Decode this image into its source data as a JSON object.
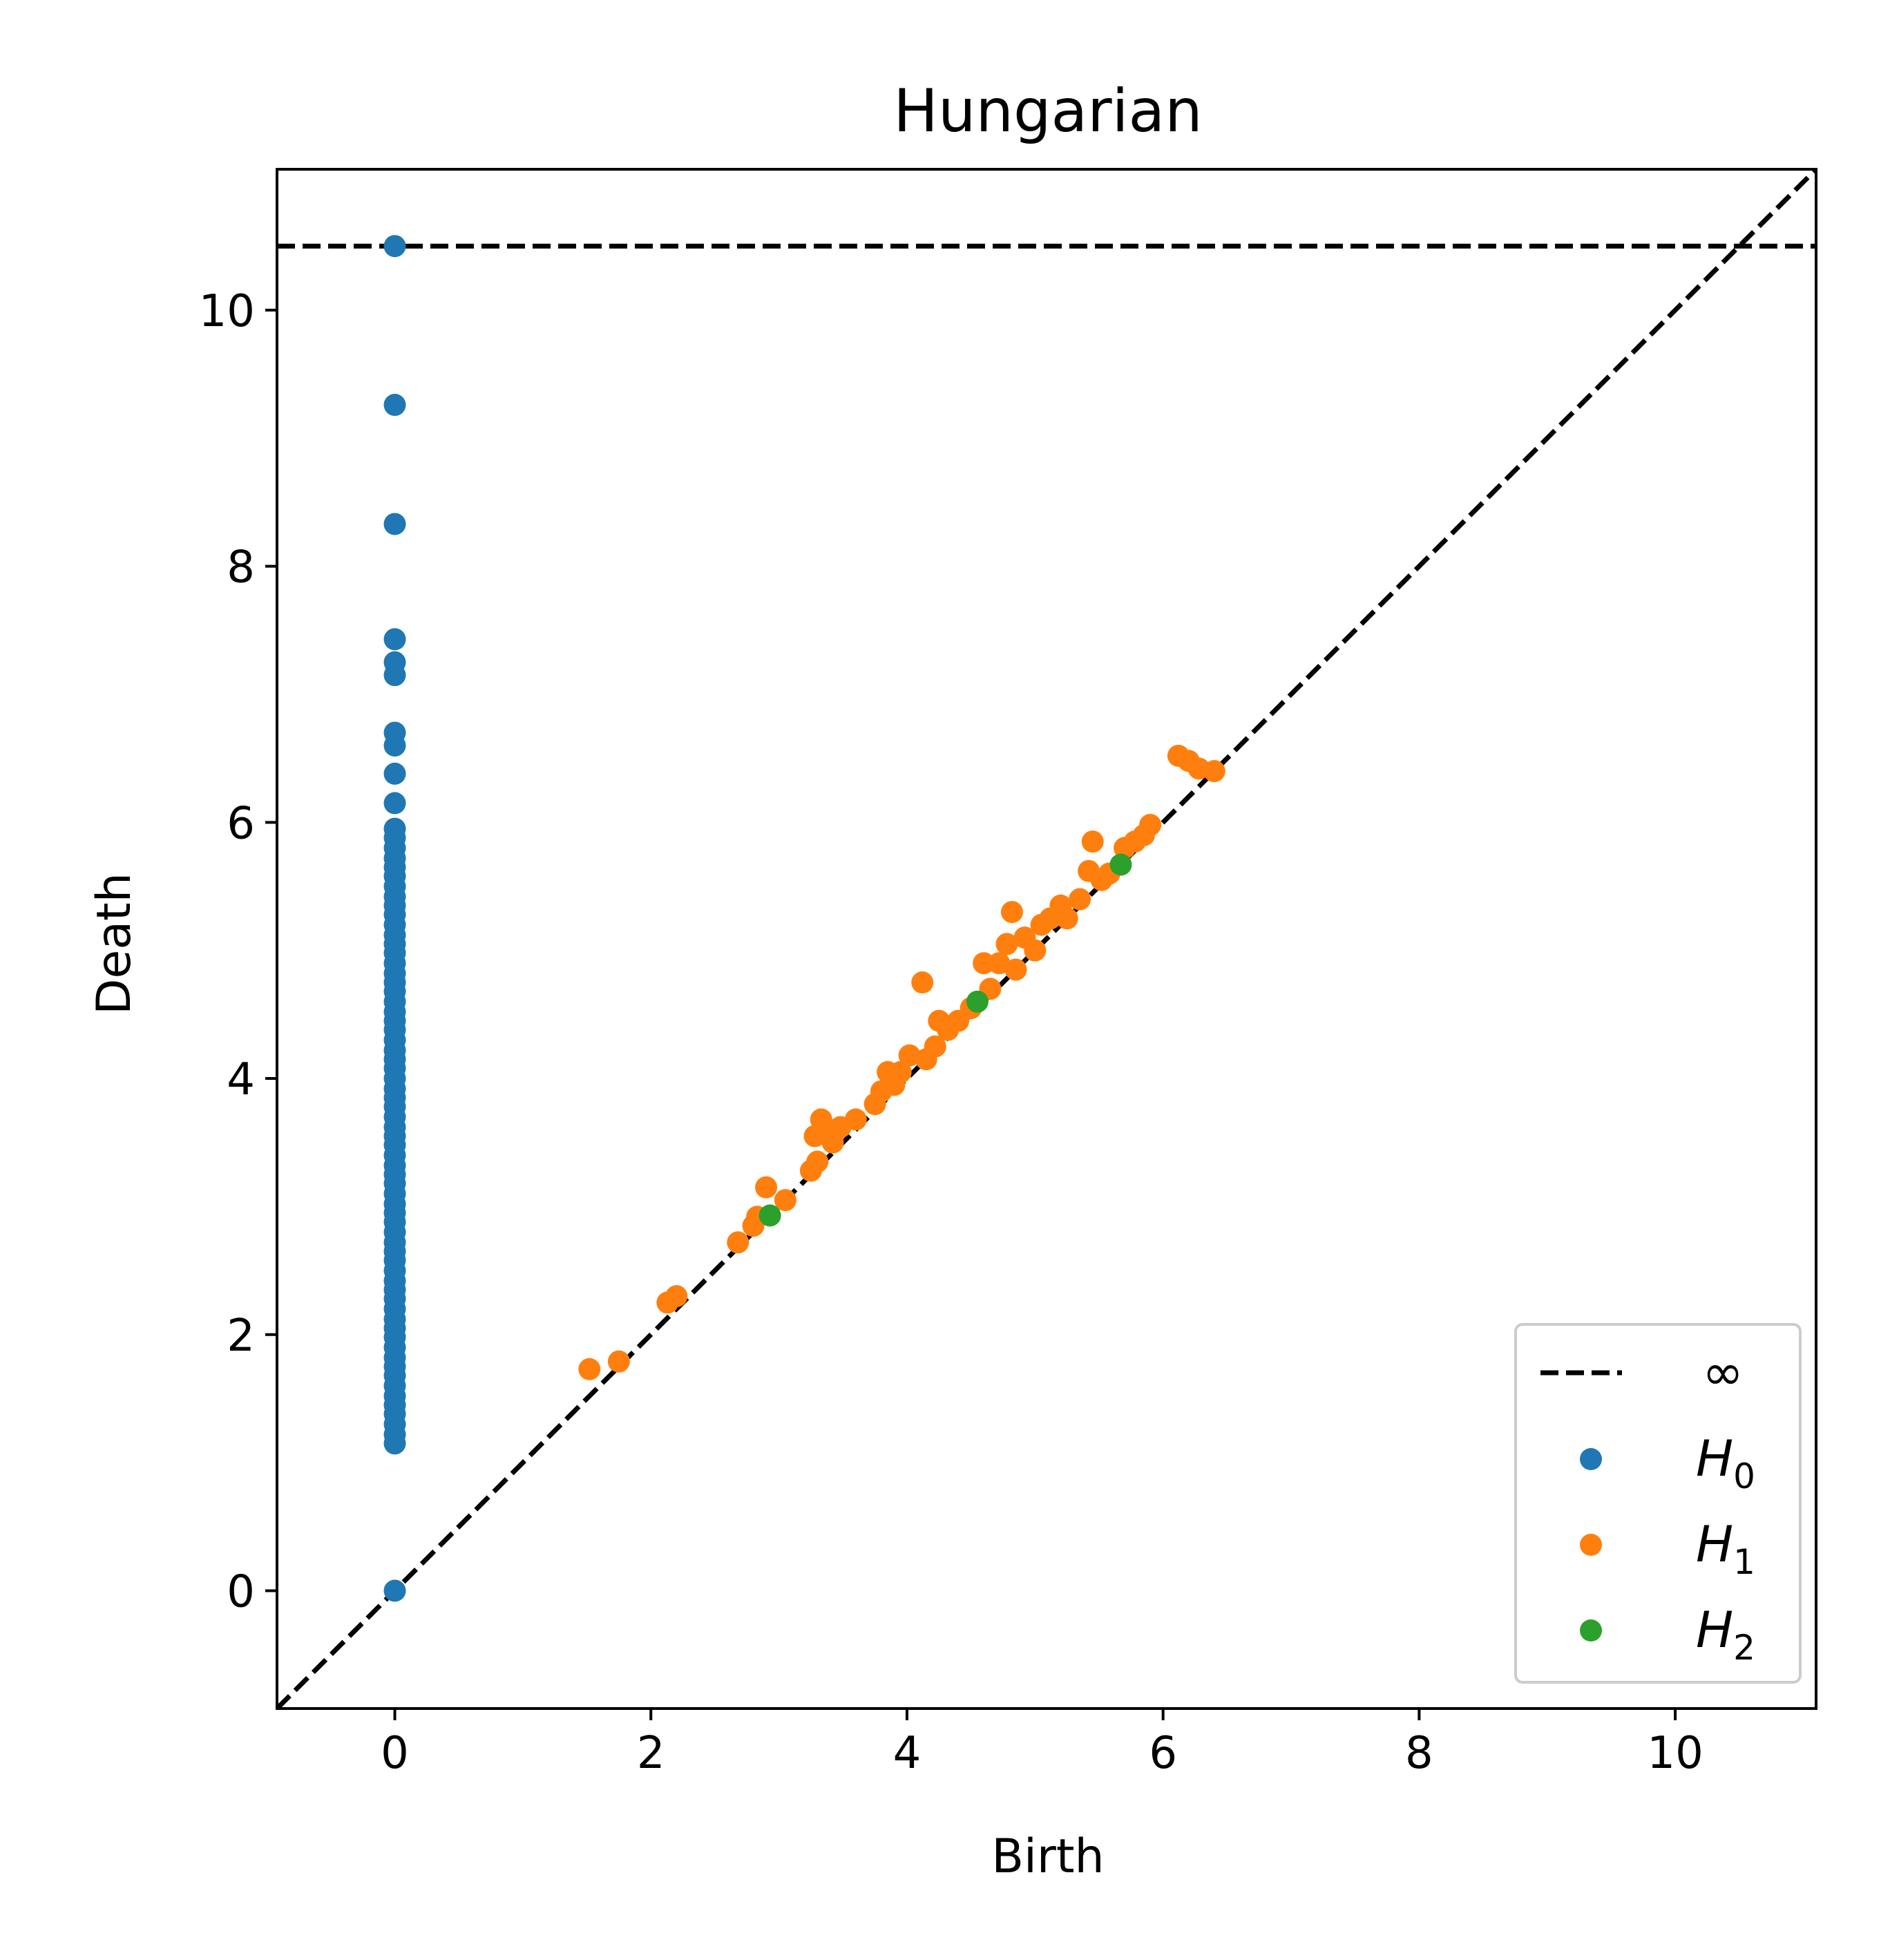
{
  "chart_data": {
    "type": "scatter",
    "title": "Hungarian",
    "xlabel": "Birth",
    "ylabel": "Death",
    "xlim": [
      -0.92,
      11.1
    ],
    "ylim": [
      -0.92,
      11.1
    ],
    "xticks": [
      0,
      2,
      4,
      6,
      8,
      10
    ],
    "yticks": [
      0,
      2,
      4,
      6,
      8,
      10
    ],
    "grid": false,
    "legend_position": "lower-right",
    "diagonal": {
      "style": "dashed",
      "color": "#000000"
    },
    "infinity_line": {
      "y": 10.5,
      "label": "∞",
      "style": "dashed",
      "color": "#000000"
    },
    "series": [
      {
        "name": "H",
        "subscript": "0",
        "color": "#1f77b4",
        "points": [
          [
            0,
            0
          ],
          [
            0,
            1.15
          ],
          [
            0,
            1.22
          ],
          [
            0,
            1.3
          ],
          [
            0,
            1.38
          ],
          [
            0,
            1.45
          ],
          [
            0,
            1.52
          ],
          [
            0,
            1.6
          ],
          [
            0,
            1.68
          ],
          [
            0,
            1.75
          ],
          [
            0,
            1.82
          ],
          [
            0,
            1.9
          ],
          [
            0,
            1.98
          ],
          [
            0,
            2.05
          ],
          [
            0,
            2.12
          ],
          [
            0,
            2.2
          ],
          [
            0,
            2.28
          ],
          [
            0,
            2.35
          ],
          [
            0,
            2.42
          ],
          [
            0,
            2.5
          ],
          [
            0,
            2.58
          ],
          [
            0,
            2.65
          ],
          [
            0,
            2.72
          ],
          [
            0,
            2.8
          ],
          [
            0,
            2.88
          ],
          [
            0,
            2.95
          ],
          [
            0,
            3.02
          ],
          [
            0,
            3.1
          ],
          [
            0,
            3.18
          ],
          [
            0,
            3.25
          ],
          [
            0,
            3.32
          ],
          [
            0,
            3.4
          ],
          [
            0,
            3.48
          ],
          [
            0,
            3.55
          ],
          [
            0,
            3.62
          ],
          [
            0,
            3.7
          ],
          [
            0,
            3.78
          ],
          [
            0,
            3.85
          ],
          [
            0,
            3.92
          ],
          [
            0,
            4.0
          ],
          [
            0,
            4.08
          ],
          [
            0,
            4.15
          ],
          [
            0,
            4.22
          ],
          [
            0,
            4.3
          ],
          [
            0,
            4.38
          ],
          [
            0,
            4.45
          ],
          [
            0,
            4.52
          ],
          [
            0,
            4.6
          ],
          [
            0,
            4.68
          ],
          [
            0,
            4.75
          ],
          [
            0,
            4.82
          ],
          [
            0,
            4.9
          ],
          [
            0,
            4.98
          ],
          [
            0,
            5.05
          ],
          [
            0,
            5.12
          ],
          [
            0,
            5.2
          ],
          [
            0,
            5.28
          ],
          [
            0,
            5.35
          ],
          [
            0,
            5.42
          ],
          [
            0,
            5.5
          ],
          [
            0,
            5.58
          ],
          [
            0,
            5.65
          ],
          [
            0,
            5.72
          ],
          [
            0,
            5.8
          ],
          [
            0,
            5.88
          ],
          [
            0,
            5.95
          ],
          [
            0,
            6.15
          ],
          [
            0,
            6.38
          ],
          [
            0,
            6.6
          ],
          [
            0,
            6.7
          ],
          [
            0,
            7.15
          ],
          [
            0,
            7.25
          ],
          [
            0,
            7.43
          ],
          [
            0,
            8.33
          ],
          [
            0,
            9.26
          ],
          [
            0,
            10.5
          ]
        ]
      },
      {
        "name": "H",
        "subscript": "1",
        "color": "#ff7f0e",
        "points": [
          [
            1.52,
            1.73
          ],
          [
            1.75,
            1.79
          ],
          [
            2.13,
            2.25
          ],
          [
            2.2,
            2.3
          ],
          [
            2.68,
            2.72
          ],
          [
            2.8,
            2.85
          ],
          [
            2.83,
            2.92
          ],
          [
            2.9,
            3.15
          ],
          [
            3.05,
            3.05
          ],
          [
            3.25,
            3.28
          ],
          [
            3.28,
            3.55
          ],
          [
            3.3,
            3.35
          ],
          [
            3.33,
            3.68
          ],
          [
            3.38,
            3.6
          ],
          [
            3.42,
            3.5
          ],
          [
            3.48,
            3.62
          ],
          [
            3.6,
            3.68
          ],
          [
            3.75,
            3.8
          ],
          [
            3.8,
            3.9
          ],
          [
            3.85,
            4.05
          ],
          [
            3.9,
            3.95
          ],
          [
            3.95,
            4.05
          ],
          [
            4.02,
            4.18
          ],
          [
            4.12,
            4.75
          ],
          [
            4.15,
            4.15
          ],
          [
            4.22,
            4.25
          ],
          [
            4.25,
            4.45
          ],
          [
            4.32,
            4.38
          ],
          [
            4.4,
            4.45
          ],
          [
            4.5,
            4.55
          ],
          [
            4.6,
            4.9
          ],
          [
            4.65,
            4.7
          ],
          [
            4.72,
            4.9
          ],
          [
            4.78,
            5.05
          ],
          [
            4.82,
            5.3
          ],
          [
            4.85,
            4.85
          ],
          [
            4.92,
            5.1
          ],
          [
            5.0,
            5.0
          ],
          [
            5.05,
            5.2
          ],
          [
            5.12,
            5.25
          ],
          [
            5.2,
            5.35
          ],
          [
            5.25,
            5.25
          ],
          [
            5.35,
            5.4
          ],
          [
            5.42,
            5.62
          ],
          [
            5.45,
            5.85
          ],
          [
            5.52,
            5.55
          ],
          [
            5.58,
            5.6
          ],
          [
            5.7,
            5.8
          ],
          [
            5.78,
            5.85
          ],
          [
            5.85,
            5.9
          ],
          [
            5.9,
            5.98
          ],
          [
            6.12,
            6.52
          ],
          [
            6.2,
            6.48
          ],
          [
            6.28,
            6.42
          ],
          [
            6.4,
            6.4
          ]
        ]
      },
      {
        "name": "H",
        "subscript": "2",
        "color": "#2ca02c",
        "points": [
          [
            2.93,
            2.93
          ],
          [
            4.55,
            4.6
          ],
          [
            5.67,
            5.67
          ]
        ]
      }
    ]
  }
}
